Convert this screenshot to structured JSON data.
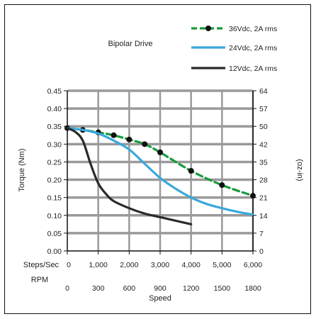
{
  "chart_data": {
    "type": "line",
    "title": "Bipolar Drive",
    "ylabel_left": "Torque (Nm)",
    "ylabel_right": "(oz-in)",
    "xlabel": "Speed",
    "steps_label": "Steps/Sec",
    "rpm_label": "RPM",
    "x_steps_ticks": [
      "0",
      "1,000",
      "2,000",
      "3,000",
      "4,000",
      "5,000",
      "6,000"
    ],
    "x_rpm_ticks": [
      "0",
      "300",
      "600",
      "900",
      "1200",
      "1500",
      "1800"
    ],
    "y_left_ticks": [
      "0.00",
      "0.05",
      "0.10",
      "0.15",
      "0.20",
      "0.25",
      "0.30",
      "0.35",
      "0.40",
      "0.45"
    ],
    "y_right_ticks": [
      "0",
      "7",
      "14",
      "21",
      "28",
      "35",
      "42",
      "50",
      "57",
      "64"
    ],
    "xlim": [
      0,
      6000
    ],
    "ylim": [
      0,
      0.45
    ],
    "grid": true,
    "legend_position": "top-right",
    "series": [
      {
        "name": "36Vdc, 2A rms",
        "color": "#1a9a3c",
        "style": "dashed-markers",
        "x": [
          0,
          500,
          1000,
          1500,
          2000,
          2500,
          3000,
          4000,
          5000,
          6000
        ],
        "y": [
          0.345,
          0.34,
          0.333,
          0.325,
          0.313,
          0.3,
          0.277,
          0.225,
          0.185,
          0.155
        ]
      },
      {
        "name": "24Vdc, 2A rms",
        "color": "#3aa8dc",
        "style": "solid",
        "x": [
          0,
          500,
          1000,
          1500,
          2000,
          2500,
          3000,
          3500,
          4000,
          4500,
          5000,
          5500,
          6000
        ],
        "y": [
          0.345,
          0.34,
          0.33,
          0.31,
          0.285,
          0.245,
          0.205,
          0.175,
          0.15,
          0.132,
          0.12,
          0.11,
          0.102
        ]
      },
      {
        "name": "12Vdc, 2A rms",
        "color": "#2a2a2a",
        "style": "solid",
        "x": [
          0,
          250,
          500,
          750,
          1000,
          1250,
          1500,
          2000,
          2500,
          3000,
          3500,
          4000
        ],
        "y": [
          0.345,
          0.335,
          0.31,
          0.245,
          0.19,
          0.16,
          0.14,
          0.12,
          0.105,
          0.095,
          0.085,
          0.075
        ]
      }
    ]
  }
}
